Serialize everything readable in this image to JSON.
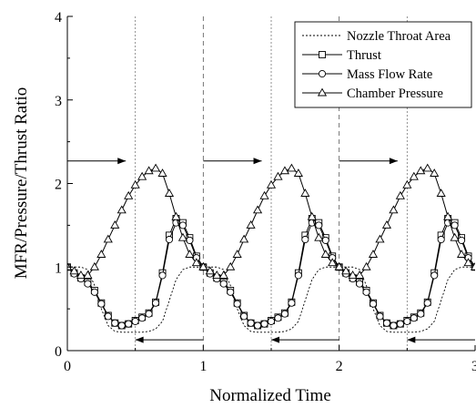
{
  "chart_data": {
    "type": "line",
    "xlabel": "Normalized Time",
    "ylabel": "MFR/Pressure/Thrust Ratio",
    "xlim": [
      0,
      3
    ],
    "ylim": [
      0,
      4
    ],
    "x_ticks": [
      0,
      1,
      2,
      3
    ],
    "y_ticks": [
      0,
      1,
      2,
      3,
      4
    ],
    "x_tick_labels": [
      "0",
      "1",
      "2",
      "3"
    ],
    "y_tick_labels": [
      "0",
      "1",
      "2",
      "3",
      "4"
    ],
    "grid": false,
    "legend_position": "top-right",
    "reference_lines": {
      "dashed_x": [
        1,
        2
      ],
      "dotted_x": [
        0.5,
        1.5,
        2.5
      ]
    },
    "arrows": [
      {
        "direction": "right",
        "from": [
          0.0,
          2.27
        ],
        "to": [
          0.43,
          2.27
        ]
      },
      {
        "direction": "right",
        "from": [
          1.0,
          2.27
        ],
        "to": [
          1.43,
          2.27
        ]
      },
      {
        "direction": "right",
        "from": [
          2.0,
          2.27
        ],
        "to": [
          2.43,
          2.27
        ]
      },
      {
        "direction": "left",
        "from": [
          1.0,
          0.13
        ],
        "to": [
          0.5,
          0.13
        ]
      },
      {
        "direction": "left",
        "from": [
          2.0,
          0.13
        ],
        "to": [
          1.5,
          0.13
        ]
      },
      {
        "direction": "left",
        "from": [
          3.0,
          0.13
        ],
        "to": [
          2.5,
          0.13
        ]
      }
    ],
    "base_period": {
      "x": [
        0,
        0.05,
        0.1,
        0.15,
        0.2,
        0.25,
        0.3,
        0.35,
        0.4,
        0.45,
        0.5,
        0.55,
        0.6,
        0.65,
        0.7,
        0.75,
        0.8,
        0.85,
        0.9,
        0.95
      ],
      "series": [
        {
          "name": "Nozzle Throat Area",
          "style": "dotted",
          "marker": "none",
          "values": [
            1.0,
            1.0,
            1.0,
            0.97,
            0.78,
            0.5,
            0.3,
            0.23,
            0.22,
            0.22,
            0.22,
            0.22,
            0.23,
            0.26,
            0.35,
            0.6,
            0.85,
            0.97,
            1.0,
            1.0
          ]
        },
        {
          "name": "Thrust",
          "style": "solid",
          "marker": "square",
          "values": [
            1.0,
            0.93,
            0.87,
            0.82,
            0.72,
            0.57,
            0.42,
            0.33,
            0.3,
            0.32,
            0.36,
            0.4,
            0.45,
            0.58,
            0.93,
            1.38,
            1.58,
            1.53,
            1.35,
            1.13
          ]
        },
        {
          "name": "Mass Flow Rate",
          "style": "solid",
          "marker": "circle",
          "values": [
            1.0,
            0.92,
            0.86,
            0.8,
            0.7,
            0.56,
            0.41,
            0.33,
            0.3,
            0.32,
            0.35,
            0.39,
            0.44,
            0.57,
            0.9,
            1.33,
            1.53,
            1.5,
            1.32,
            1.11
          ]
        },
        {
          "name": "Chamber Pressure",
          "style": "solid",
          "marker": "triangle",
          "values": [
            1.0,
            0.95,
            0.9,
            0.9,
            1.0,
            1.15,
            1.33,
            1.5,
            1.68,
            1.85,
            1.98,
            2.08,
            2.15,
            2.18,
            2.12,
            1.88,
            1.6,
            1.35,
            1.15,
            1.05
          ]
        }
      ]
    },
    "periods": 3
  }
}
